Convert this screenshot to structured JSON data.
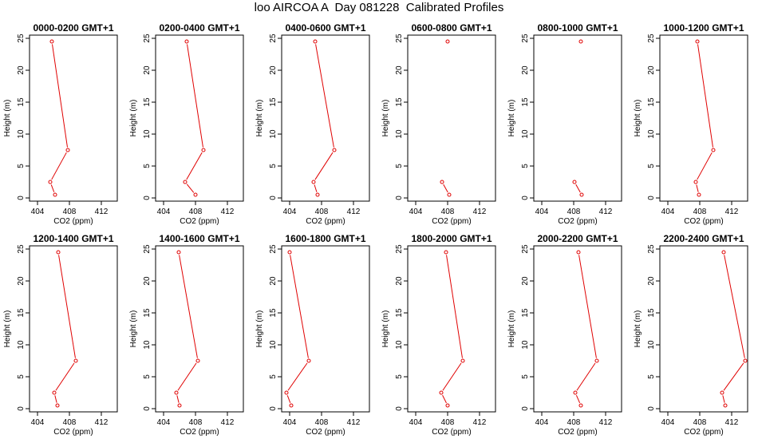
{
  "title": "loo AIRCOA A  Day 081228  Calibrated Profiles",
  "colors": {
    "series": "#e00000",
    "axis": "#000000",
    "background": "#ffffff"
  },
  "chart_data": [
    {
      "type": "line",
      "title": "0000-0200 GMT+1",
      "xlabel": "CO2 (ppm)",
      "ylabel": "Height (m)",
      "xlim": [
        403,
        414
      ],
      "ylim": [
        -0.5,
        25.5
      ],
      "xticks": [
        404,
        408,
        412
      ],
      "yticks": [
        0,
        5,
        10,
        15,
        20,
        25
      ],
      "grid": false,
      "points": [
        {
          "x": 406.2,
          "y": 0.5
        },
        {
          "x": 405.6,
          "y": 2.5
        },
        {
          "x": 407.8,
          "y": 7.5
        },
        {
          "x": 405.8,
          "y": 24.5
        }
      ],
      "segments": [
        [
          0,
          1
        ],
        [
          1,
          2
        ],
        [
          2,
          3
        ]
      ]
    },
    {
      "type": "line",
      "title": "0200-0400 GMT+1",
      "xlabel": "CO2 (ppm)",
      "ylabel": "Height (m)",
      "xlim": [
        403,
        414
      ],
      "ylim": [
        -0.5,
        25.5
      ],
      "xticks": [
        404,
        408,
        412
      ],
      "yticks": [
        0,
        5,
        10,
        15,
        20,
        25
      ],
      "grid": false,
      "points": [
        {
          "x": 408.0,
          "y": 0.5
        },
        {
          "x": 406.7,
          "y": 2.5
        },
        {
          "x": 409.0,
          "y": 7.5
        },
        {
          "x": 406.9,
          "y": 24.5
        }
      ],
      "segments": [
        [
          0,
          1
        ],
        [
          1,
          2
        ],
        [
          2,
          3
        ]
      ]
    },
    {
      "type": "line",
      "title": "0400-0600 GMT+1",
      "xlabel": "CO2 (ppm)",
      "ylabel": "Height (m)",
      "xlim": [
        403,
        414
      ],
      "ylim": [
        -0.5,
        25.5
      ],
      "xticks": [
        404,
        408,
        412
      ],
      "yticks": [
        0,
        5,
        10,
        15,
        20,
        25
      ],
      "grid": false,
      "points": [
        {
          "x": 407.5,
          "y": 0.5
        },
        {
          "x": 407.0,
          "y": 2.5
        },
        {
          "x": 409.6,
          "y": 7.5
        },
        {
          "x": 407.2,
          "y": 24.5
        }
      ],
      "segments": [
        [
          0,
          1
        ],
        [
          1,
          2
        ],
        [
          2,
          3
        ]
      ]
    },
    {
      "type": "line",
      "title": "0600-0800 GMT+1",
      "xlabel": "CO2 (ppm)",
      "ylabel": "Height (m)",
      "xlim": [
        403,
        414
      ],
      "ylim": [
        -0.5,
        25.5
      ],
      "xticks": [
        404,
        408,
        412
      ],
      "yticks": [
        0,
        5,
        10,
        15,
        20,
        25
      ],
      "grid": false,
      "points": [
        {
          "x": 408.2,
          "y": 0.5
        },
        {
          "x": 407.3,
          "y": 2.5
        },
        {
          "x": 408.0,
          "y": 24.5
        }
      ],
      "segments": [
        [
          0,
          1
        ]
      ]
    },
    {
      "type": "line",
      "title": "0800-1000 GMT+1",
      "xlabel": "CO2 (ppm)",
      "ylabel": "Height (m)",
      "xlim": [
        403,
        414
      ],
      "ylim": [
        -0.5,
        25.5
      ],
      "xticks": [
        404,
        408,
        412
      ],
      "yticks": [
        0,
        5,
        10,
        15,
        20,
        25
      ],
      "grid": false,
      "points": [
        {
          "x": 409.0,
          "y": 0.5
        },
        {
          "x": 408.1,
          "y": 2.5
        },
        {
          "x": 408.9,
          "y": 24.5
        }
      ],
      "segments": [
        [
          0,
          1
        ]
      ]
    },
    {
      "type": "line",
      "title": "1000-1200 GMT+1",
      "xlabel": "CO2 (ppm)",
      "ylabel": "Height (m)",
      "xlim": [
        403,
        414
      ],
      "ylim": [
        -0.5,
        25.5
      ],
      "xticks": [
        404,
        408,
        412
      ],
      "yticks": [
        0,
        5,
        10,
        15,
        20,
        25
      ],
      "grid": false,
      "points": [
        {
          "x": 407.9,
          "y": 0.5
        },
        {
          "x": 407.5,
          "y": 2.5
        },
        {
          "x": 409.7,
          "y": 7.5
        },
        {
          "x": 407.7,
          "y": 24.5
        }
      ],
      "segments": [
        [
          0,
          1
        ],
        [
          1,
          2
        ],
        [
          2,
          3
        ]
      ]
    },
    {
      "type": "line",
      "title": "1200-1400 GMT+1",
      "xlabel": "CO2 (ppm)",
      "ylabel": "Height (m)",
      "xlim": [
        403,
        414
      ],
      "ylim": [
        -0.5,
        25.5
      ],
      "xticks": [
        404,
        408,
        412
      ],
      "yticks": [
        0,
        5,
        10,
        15,
        20,
        25
      ],
      "grid": false,
      "points": [
        {
          "x": 406.5,
          "y": 0.5
        },
        {
          "x": 406.1,
          "y": 2.5
        },
        {
          "x": 408.8,
          "y": 7.5
        },
        {
          "x": 406.6,
          "y": 24.5
        }
      ],
      "segments": [
        [
          0,
          1
        ],
        [
          1,
          2
        ],
        [
          2,
          3
        ]
      ]
    },
    {
      "type": "line",
      "title": "1400-1600 GMT+1",
      "xlabel": "CO2 (ppm)",
      "ylabel": "Height (m)",
      "xlim": [
        403,
        414
      ],
      "ylim": [
        -0.5,
        25.5
      ],
      "xticks": [
        404,
        408,
        412
      ],
      "yticks": [
        0,
        5,
        10,
        15,
        20,
        25
      ],
      "grid": false,
      "points": [
        {
          "x": 406.0,
          "y": 0.5
        },
        {
          "x": 405.6,
          "y": 2.5
        },
        {
          "x": 408.3,
          "y": 7.5
        },
        {
          "x": 405.9,
          "y": 24.5
        }
      ],
      "segments": [
        [
          0,
          1
        ],
        [
          1,
          2
        ],
        [
          2,
          3
        ]
      ]
    },
    {
      "type": "line",
      "title": "1600-1800 GMT+1",
      "xlabel": "CO2 (ppm)",
      "ylabel": "Height (m)",
      "xlim": [
        403,
        414
      ],
      "ylim": [
        -0.5,
        25.5
      ],
      "xticks": [
        404,
        408,
        412
      ],
      "yticks": [
        0,
        5,
        10,
        15,
        20,
        25
      ],
      "grid": false,
      "points": [
        {
          "x": 404.2,
          "y": 0.5
        },
        {
          "x": 403.6,
          "y": 2.5
        },
        {
          "x": 406.4,
          "y": 7.5
        },
        {
          "x": 404.0,
          "y": 24.5
        }
      ],
      "segments": [
        [
          0,
          1
        ],
        [
          1,
          2
        ],
        [
          2,
          3
        ]
      ]
    },
    {
      "type": "line",
      "title": "1800-2000 GMT+1",
      "xlabel": "CO2 (ppm)",
      "ylabel": "Height (m)",
      "xlim": [
        403,
        414
      ],
      "ylim": [
        -0.5,
        25.5
      ],
      "xticks": [
        404,
        408,
        412
      ],
      "yticks": [
        0,
        5,
        10,
        15,
        20,
        25
      ],
      "grid": false,
      "points": [
        {
          "x": 408.0,
          "y": 0.5
        },
        {
          "x": 407.2,
          "y": 2.5
        },
        {
          "x": 409.9,
          "y": 7.5
        },
        {
          "x": 407.8,
          "y": 24.5
        }
      ],
      "segments": [
        [
          0,
          1
        ],
        [
          1,
          2
        ],
        [
          2,
          3
        ]
      ]
    },
    {
      "type": "line",
      "title": "2000-2200 GMT+1",
      "xlabel": "CO2 (ppm)",
      "ylabel": "Height (m)",
      "xlim": [
        403,
        414
      ],
      "ylim": [
        -0.5,
        25.5
      ],
      "xticks": [
        404,
        408,
        412
      ],
      "yticks": [
        0,
        5,
        10,
        15,
        20,
        25
      ],
      "grid": false,
      "points": [
        {
          "x": 408.9,
          "y": 0.5
        },
        {
          "x": 408.2,
          "y": 2.5
        },
        {
          "x": 410.9,
          "y": 7.5
        },
        {
          "x": 408.6,
          "y": 24.5
        }
      ],
      "segments": [
        [
          0,
          1
        ],
        [
          1,
          2
        ],
        [
          2,
          3
        ]
      ]
    },
    {
      "type": "line",
      "title": "2200-2400 GMT+1",
      "xlabel": "CO2 (ppm)",
      "ylabel": "Height (m)",
      "xlim": [
        403,
        414
      ],
      "ylim": [
        -0.5,
        25.5
      ],
      "xticks": [
        404,
        408,
        412
      ],
      "yticks": [
        0,
        5,
        10,
        15,
        20,
        25
      ],
      "grid": false,
      "points": [
        {
          "x": 411.2,
          "y": 0.5
        },
        {
          "x": 410.8,
          "y": 2.5
        },
        {
          "x": 413.7,
          "y": 7.5
        },
        {
          "x": 411.0,
          "y": 24.5
        }
      ],
      "segments": [
        [
          0,
          1
        ],
        [
          1,
          2
        ],
        [
          2,
          3
        ]
      ]
    }
  ]
}
